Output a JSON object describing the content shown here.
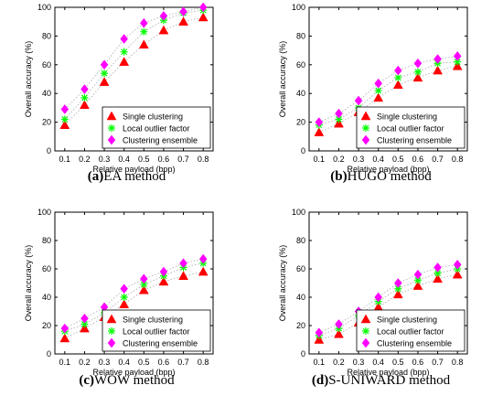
{
  "colors": {
    "single": "#ff0000",
    "lof": "#00ff00",
    "ensemble": "#ff00ff",
    "axis": "#000000",
    "trend": "#aaaaaa"
  },
  "chart_data": [
    {
      "type": "scatter",
      "caption_tag": "(a)",
      "caption_text": "EA method",
      "xlabel": "Relative payload (bpp)",
      "ylabel": "Overall accuracy (%)",
      "x": [
        0.1,
        0.2,
        0.3,
        0.4,
        0.5,
        0.6,
        0.7,
        0.8
      ],
      "xticks": [
        "0.1",
        "0.2",
        "0.3",
        "0.4",
        "0.5",
        "0.6",
        "0.7",
        "0.8"
      ],
      "ylim": [
        0,
        100
      ],
      "yticks": [
        "0",
        "20",
        "40",
        "60",
        "80",
        "100"
      ],
      "legend_position": "bottom-right",
      "grid": false,
      "series": [
        {
          "name": "Single clustering",
          "marker": "triangle",
          "values": [
            18,
            32,
            48,
            62,
            74,
            84,
            90,
            93
          ]
        },
        {
          "name": "Local outlier factor",
          "marker": "asterisk",
          "values": [
            22,
            37,
            54,
            69,
            83,
            91,
            96,
            98
          ]
        },
        {
          "name": "Clustering ensemble",
          "marker": "diamond",
          "values": [
            29,
            43,
            60,
            78,
            89,
            94,
            97,
            100
          ]
        }
      ]
    },
    {
      "type": "scatter",
      "caption_tag": "(b)",
      "caption_text": "HUGO method",
      "xlabel": "Relative payload (bpp)",
      "ylabel": "Overall accuracy (%)",
      "x": [
        0.1,
        0.2,
        0.3,
        0.4,
        0.5,
        0.6,
        0.7,
        0.8
      ],
      "xticks": [
        "0.1",
        "0.2",
        "0.3",
        "0.4",
        "0.5",
        "0.6",
        "0.7",
        "0.8"
      ],
      "ylim": [
        0,
        100
      ],
      "yticks": [
        "0",
        "20",
        "40",
        "60",
        "80",
        "100"
      ],
      "legend_position": "bottom-right",
      "grid": false,
      "series": [
        {
          "name": "Single clustering",
          "marker": "triangle",
          "values": [
            13,
            19,
            27,
            37,
            46,
            51,
            56,
            59
          ]
        },
        {
          "name": "Local outlier factor",
          "marker": "asterisk",
          "values": [
            18,
            22,
            30,
            42,
            51,
            55,
            61,
            62
          ]
        },
        {
          "name": "Clustering ensemble",
          "marker": "diamond",
          "values": [
            20,
            26,
            35,
            47,
            56,
            61,
            64,
            66
          ]
        }
      ]
    },
    {
      "type": "scatter",
      "caption_tag": "(c)",
      "caption_text": "WOW method",
      "xlabel": "Relative payload (bpp)",
      "ylabel": "Overall accuracy (%)",
      "x": [
        0.1,
        0.2,
        0.3,
        0.4,
        0.5,
        0.6,
        0.7,
        0.8
      ],
      "xticks": [
        "0.1",
        "0.2",
        "0.3",
        "0.4",
        "0.5",
        "0.6",
        "0.7",
        "0.8"
      ],
      "ylim": [
        0,
        100
      ],
      "yticks": [
        "0",
        "20",
        "40",
        "60",
        "80",
        "100"
      ],
      "legend_position": "bottom-right",
      "grid": false,
      "series": [
        {
          "name": "Single clustering",
          "marker": "triangle",
          "values": [
            11,
            18,
            26,
            35,
            45,
            51,
            55,
            58
          ]
        },
        {
          "name": "Local outlier factor",
          "marker": "asterisk",
          "values": [
            16,
            21,
            29,
            40,
            49,
            55,
            61,
            64
          ]
        },
        {
          "name": "Clustering ensemble",
          "marker": "diamond",
          "values": [
            18,
            25,
            33,
            46,
            53,
            58,
            64,
            67
          ]
        }
      ]
    },
    {
      "type": "scatter",
      "caption_tag": "(d)",
      "caption_text": "S-UNIWARD method",
      "xlabel": "Relative payload (bpp)",
      "ylabel": "Overall accuracy (%)",
      "x": [
        0.1,
        0.2,
        0.3,
        0.4,
        0.5,
        0.6,
        0.7,
        0.8
      ],
      "xticks": [
        "0.1",
        "0.2",
        "0.3",
        "0.4",
        "0.5",
        "0.6",
        "0.7",
        "0.8"
      ],
      "ylim": [
        0,
        100
      ],
      "yticks": [
        "0",
        "20",
        "40",
        "60",
        "80",
        "100"
      ],
      "legend_position": "bottom-right",
      "grid": false,
      "series": [
        {
          "name": "Single clustering",
          "marker": "triangle",
          "values": [
            10,
            14,
            22,
            33,
            42,
            48,
            53,
            56
          ]
        },
        {
          "name": "Local outlier factor",
          "marker": "asterisk",
          "values": [
            13,
            18,
            27,
            37,
            46,
            52,
            57,
            60
          ]
        },
        {
          "name": "Clustering ensemble",
          "marker": "diamond",
          "values": [
            15,
            21,
            30,
            40,
            50,
            56,
            61,
            63
          ]
        }
      ]
    }
  ]
}
